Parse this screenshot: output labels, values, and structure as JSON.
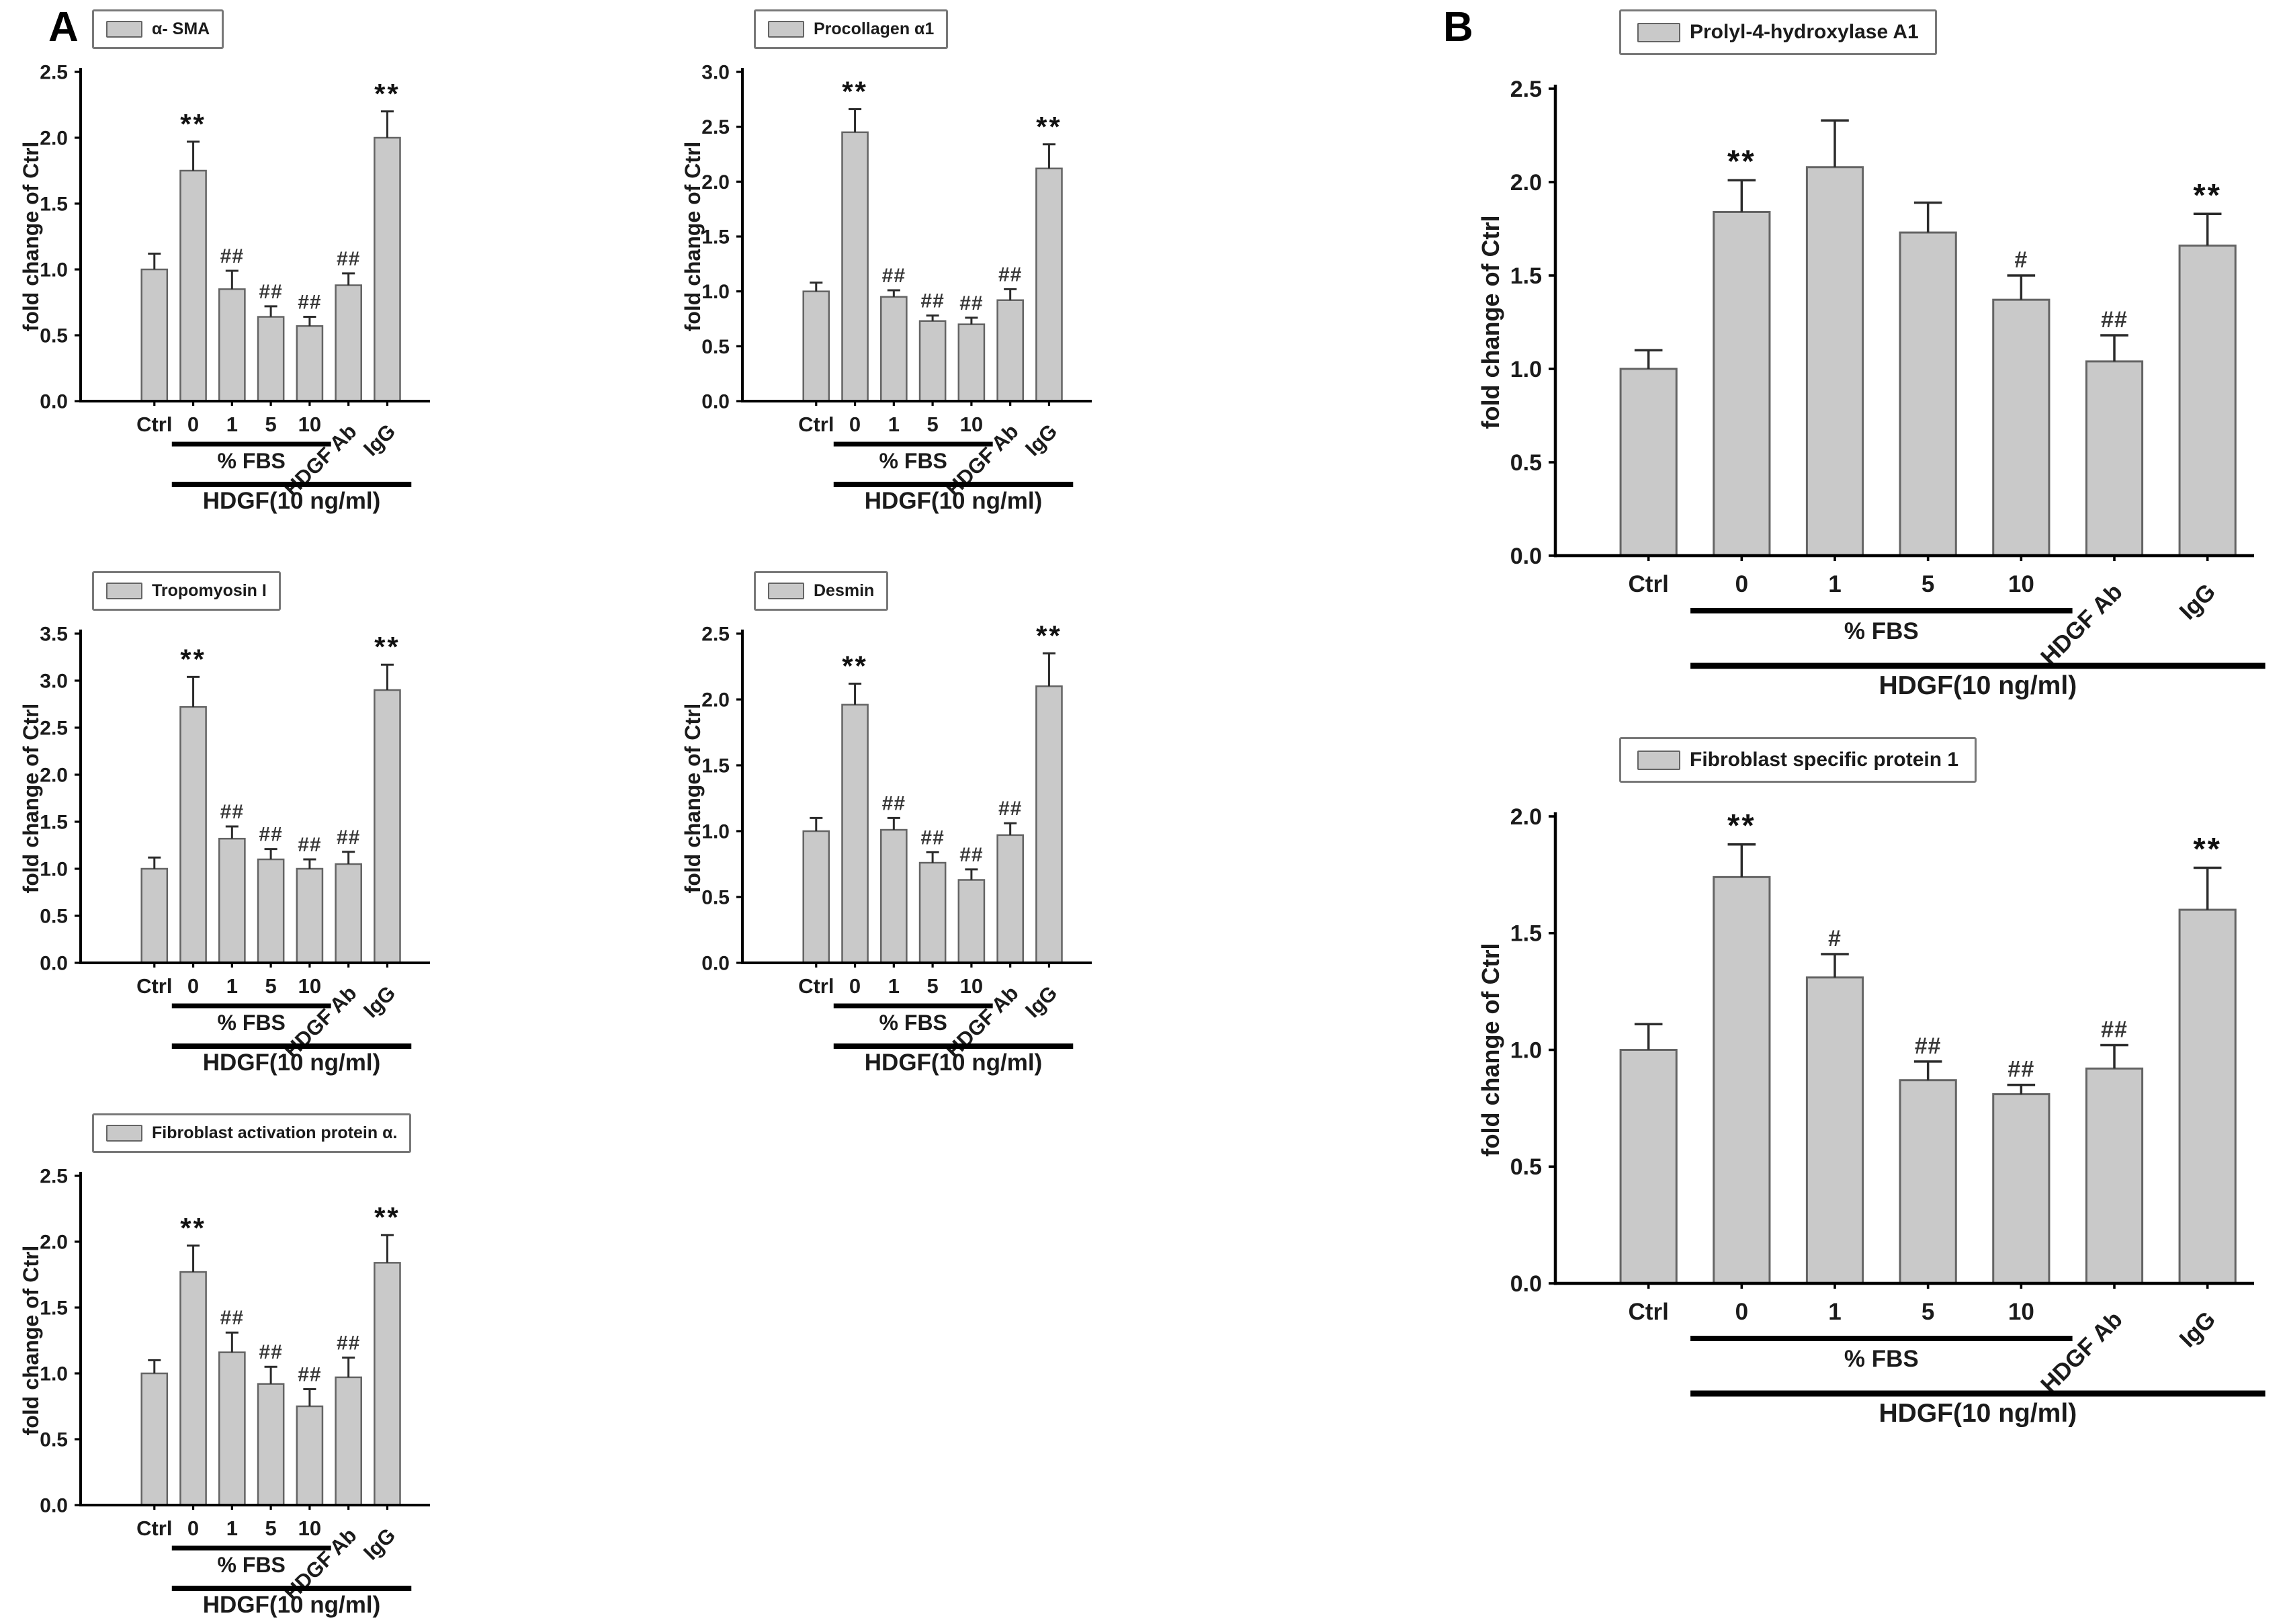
{
  "figure": {
    "panel_a_label": "A",
    "panel_b_label": "B",
    "colors": {
      "bar_fill": "#c9c9c9",
      "bar_stroke": "#646464",
      "error_bar": "#2b2b2b",
      "axis": "#000000",
      "star_annotation": "#111111",
      "hash_annotation": "#373737",
      "text": "#1b1b1b",
      "legend_border": "#787878"
    }
  },
  "shared": {
    "ylabel": "fold change of Ctrl",
    "categories": [
      "Ctrl",
      "0",
      "1",
      "5",
      "10",
      "HDGF Ab",
      "IgG"
    ],
    "group_lines": [
      {
        "label": "% FBS",
        "from": 1,
        "to": 4
      },
      {
        "label": "HDGF(10 ng/ml)",
        "from": 1,
        "to": 6
      }
    ]
  },
  "chart_data": [
    {
      "id": "alpha-sma",
      "panel": "A",
      "type": "bar",
      "title": "α- SMA",
      "ylabel": "fold change of Ctrl",
      "categories": [
        "Ctrl",
        "0",
        "1",
        "5",
        "10",
        "HDGF Ab",
        "IgG"
      ],
      "values": [
        1.0,
        1.75,
        0.85,
        0.64,
        0.57,
        0.88,
        2.0
      ],
      "errors": [
        0.12,
        0.22,
        0.14,
        0.08,
        0.07,
        0.09,
        0.2
      ],
      "annotations": [
        "",
        "**",
        "##",
        "##",
        "##",
        "##",
        "**"
      ],
      "ylim": [
        0,
        2.5
      ],
      "ytick_step": 0.5,
      "grid": false,
      "legend_position": "top-left"
    },
    {
      "id": "procollagen-a1",
      "panel": "A",
      "type": "bar",
      "title": "Procollagen α1",
      "ylabel": "fold change of Ctrl",
      "categories": [
        "Ctrl",
        "0",
        "1",
        "5",
        "10",
        "HDGF Ab",
        "IgG"
      ],
      "values": [
        1.0,
        2.45,
        0.95,
        0.73,
        0.7,
        0.92,
        2.12
      ],
      "errors": [
        0.08,
        0.21,
        0.06,
        0.05,
        0.06,
        0.1,
        0.22
      ],
      "annotations": [
        "",
        "**",
        "##",
        "##",
        "##",
        "##",
        "**"
      ],
      "ylim": [
        0,
        3.0
      ],
      "ytick_step": 0.5,
      "grid": false,
      "legend_position": "top-left"
    },
    {
      "id": "tropomyosin-i",
      "panel": "A",
      "type": "bar",
      "title": "Tropomyosin I",
      "ylabel": "fold change of Ctrl",
      "categories": [
        "Ctrl",
        "0",
        "1",
        "5",
        "10",
        "HDGF Ab",
        "IgG"
      ],
      "values": [
        1.0,
        2.72,
        1.32,
        1.1,
        1.0,
        1.05,
        2.9
      ],
      "errors": [
        0.12,
        0.32,
        0.13,
        0.11,
        0.1,
        0.13,
        0.27
      ],
      "annotations": [
        "",
        "**",
        "##",
        "##",
        "##",
        "##",
        "**"
      ],
      "ylim": [
        0,
        3.5
      ],
      "ytick_step": 0.5,
      "grid": false,
      "legend_position": "top-left"
    },
    {
      "id": "desmin",
      "panel": "A",
      "type": "bar",
      "title": "Desmin",
      "ylabel": "fold change of Ctrl",
      "categories": [
        "Ctrl",
        "0",
        "1",
        "5",
        "10",
        "HDGF Ab",
        "IgG"
      ],
      "values": [
        1.0,
        1.96,
        1.01,
        0.76,
        0.63,
        0.97,
        2.1
      ],
      "errors": [
        0.1,
        0.16,
        0.09,
        0.08,
        0.08,
        0.09,
        0.25
      ],
      "annotations": [
        "",
        "**",
        "##",
        "##",
        "##",
        "##",
        "**"
      ],
      "ylim": [
        0,
        2.5
      ],
      "ytick_step": 0.5,
      "grid": false,
      "legend_position": "top-left"
    },
    {
      "id": "fibroblast-activation-protein-a",
      "panel": "A",
      "type": "bar",
      "title": "Fibroblast activation protein α.",
      "ylabel": "fold change of Ctrl",
      "categories": [
        "Ctrl",
        "0",
        "1",
        "5",
        "10",
        "HDGF Ab",
        "IgG"
      ],
      "values": [
        1.0,
        1.77,
        1.16,
        0.92,
        0.75,
        0.97,
        1.84
      ],
      "errors": [
        0.1,
        0.2,
        0.15,
        0.13,
        0.13,
        0.15,
        0.21
      ],
      "annotations": [
        "",
        "**",
        "##",
        "##",
        "##",
        "##",
        "**"
      ],
      "ylim": [
        0,
        2.5
      ],
      "ytick_step": 0.5,
      "grid": false,
      "legend_position": "top-left"
    },
    {
      "id": "prolyl-4-hydroxylase-a1",
      "panel": "B",
      "type": "bar",
      "title": "Prolyl-4-hydroxylase A1",
      "ylabel": "fold change of Ctrl",
      "categories": [
        "Ctrl",
        "0",
        "1",
        "5",
        "10",
        "HDGF Ab",
        "IgG"
      ],
      "values": [
        1.0,
        1.84,
        2.08,
        1.73,
        1.37,
        1.04,
        1.66
      ],
      "errors": [
        0.1,
        0.17,
        0.25,
        0.16,
        0.13,
        0.14,
        0.17
      ],
      "annotations": [
        "",
        "**",
        "",
        "",
        "#",
        "##",
        "**"
      ],
      "ylim": [
        0,
        2.5
      ],
      "ytick_step": 0.5,
      "grid": false,
      "legend_position": "top-left"
    },
    {
      "id": "fibroblast-specific-protein-1",
      "panel": "B",
      "type": "bar",
      "title": "Fibroblast specific protein 1",
      "ylabel": "fold change of Ctrl",
      "categories": [
        "Ctrl",
        "0",
        "1",
        "5",
        "10",
        "HDGF Ab",
        "IgG"
      ],
      "values": [
        1.0,
        1.74,
        1.31,
        0.87,
        0.81,
        0.92,
        1.6
      ],
      "errors": [
        0.11,
        0.14,
        0.1,
        0.08,
        0.04,
        0.1,
        0.18
      ],
      "annotations": [
        "",
        "**",
        "#",
        "##",
        "##",
        "##",
        "**"
      ],
      "ylim": [
        0,
        2.0
      ],
      "ytick_step": 0.5,
      "grid": false,
      "legend_position": "top-left"
    }
  ]
}
